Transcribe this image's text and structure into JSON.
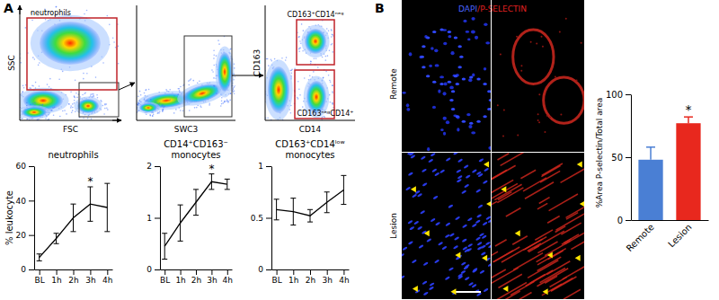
{
  "panel_labels": [
    "A",
    "B"
  ],
  "flow_plots": [
    {
      "x_label": "FSC",
      "y_label": "SSC",
      "gates": [
        "neutrophils"
      ]
    },
    {
      "x_label": "SWC3"
    },
    {
      "x_label": "CD14",
      "y_label": "CD163",
      "gates": [
        "CD163⁺CD14ⁿᵉᵍ",
        "CD163ⁿᵉᵍCD14⁺"
      ]
    }
  ],
  "micrographs": {
    "stains": [
      "DAPI",
      "P-SELECTIN"
    ],
    "stain_separator": "/",
    "rows": [
      "Remote",
      "Lesion"
    ]
  },
  "chart_data": [
    {
      "type": "line",
      "title": "neutrophils",
      "y_label": "% leukocyte",
      "categories": [
        "BL",
        "1h",
        "2h",
        "3h",
        "4h"
      ],
      "values": [
        7,
        18,
        30,
        38,
        36
      ],
      "errors": [
        2,
        3,
        8,
        10,
        14
      ],
      "color": "#000000",
      "ylim": [
        0,
        60
      ],
      "yticks": [
        0,
        20,
        40,
        60
      ],
      "annotations": [
        {
          "x": "3h",
          "text": "*"
        }
      ]
    },
    {
      "type": "line",
      "title": "CD14⁺CD163⁻ monocytes",
      "categories": [
        "BL",
        "1h",
        "2h",
        "3h",
        "4h"
      ],
      "values": [
        0.45,
        0.9,
        1.3,
        1.7,
        1.65
      ],
      "errors": [
        0.25,
        0.35,
        0.25,
        0.15,
        0.1
      ],
      "color": "#000000",
      "ylim": [
        0,
        2
      ],
      "yticks": [
        0,
        1,
        2
      ],
      "annotations": [
        {
          "x": "3h",
          "text": "*"
        }
      ]
    },
    {
      "type": "line",
      "title": "CD163⁺CD14ˡᵒʷ monocytes",
      "categories": [
        "BL",
        "1h",
        "2h",
        "3h",
        "4h"
      ],
      "values": [
        0.58,
        0.56,
        0.52,
        0.65,
        0.77
      ],
      "errors": [
        0.1,
        0.13,
        0.06,
        0.1,
        0.14
      ],
      "color": "#000000",
      "ylim": [
        0,
        1
      ],
      "yticks": [
        0,
        0.5,
        1
      ]
    },
    {
      "type": "bar",
      "y_label": "%Area P-selectin/Total area",
      "categories": [
        "Remote",
        "Lesion"
      ],
      "values": [
        48,
        77
      ],
      "errors": [
        10,
        5
      ],
      "colors": [
        "#4a7fd4",
        "#e8281e"
      ],
      "ylim": [
        0,
        100
      ],
      "yticks": [
        0,
        50,
        100
      ],
      "annotations": [
        {
          "x": "Lesion",
          "text": "*"
        }
      ]
    }
  ]
}
